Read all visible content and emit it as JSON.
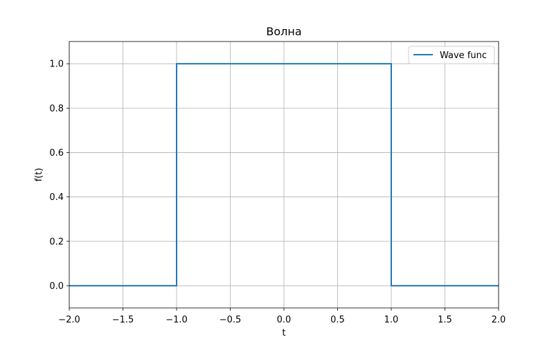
{
  "chart_data": {
    "type": "line",
    "title": "Волна",
    "xlabel": "t",
    "ylabel": "f(t)",
    "xlim": [
      -2.0,
      2.0
    ],
    "ylim": [
      -0.1,
      1.1
    ],
    "grid": true,
    "legend_position": "top-right",
    "x_ticks": [
      -2.0,
      -1.5,
      -1.0,
      -0.5,
      0.0,
      0.5,
      1.0,
      1.5,
      2.0
    ],
    "x_tick_labels": [
      "−2.0",
      "−1.5",
      "−1.0",
      "−0.5",
      "0.0",
      "0.5",
      "1.0",
      "1.5",
      "2.0"
    ],
    "y_ticks": [
      0.0,
      0.2,
      0.4,
      0.6,
      0.8,
      1.0
    ],
    "y_tick_labels": [
      "0.0",
      "0.2",
      "0.4",
      "0.6",
      "0.8",
      "1.0"
    ],
    "series": [
      {
        "name": "Wave func",
        "color": "#1f77b4",
        "x": [
          -2.0,
          -1.0,
          -1.0,
          1.0,
          1.0,
          2.0
        ],
        "y": [
          0.0,
          0.0,
          1.0,
          1.0,
          0.0,
          0.0
        ]
      }
    ]
  }
}
